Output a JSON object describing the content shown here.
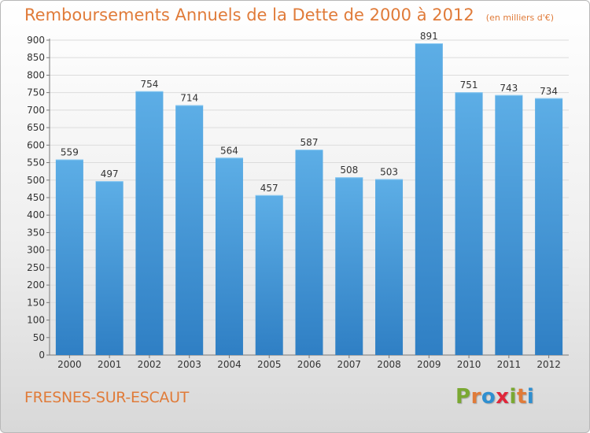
{
  "header": {
    "title": "Remboursements Annuels de la Dette de 2000 à 2012",
    "unit": "(en milliers d'€)"
  },
  "footer": {
    "commune": "FRESNES-SUR-ESCAUT",
    "logo_text": "Proxiti"
  },
  "colors": {
    "title": "#e07b39",
    "bar_top": "#5daee6",
    "bar_bottom": "#2f7fc4",
    "logo": [
      "#7aa832",
      "#e07b39",
      "#2f8fd0",
      "#e0263a",
      "#7aa832",
      "#e07b39",
      "#2f8fd0"
    ]
  },
  "chart_data": {
    "type": "bar",
    "title": "Remboursements Annuels de la Dette de 2000 à 2012",
    "subtitle": "(en milliers d'€)",
    "categories": [
      "2000",
      "2001",
      "2002",
      "2003",
      "2004",
      "2005",
      "2006",
      "2007",
      "2008",
      "2009",
      "2010",
      "2011",
      "2012"
    ],
    "values": [
      559,
      497,
      754,
      714,
      564,
      457,
      587,
      508,
      503,
      891,
      751,
      743,
      734
    ],
    "data_labels": [
      "559",
      "497",
      "754",
      "714",
      "564",
      "457",
      "587",
      "508",
      "503",
      "891",
      "751",
      "743",
      "734"
    ],
    "yticks": [
      0,
      50,
      100,
      150,
      200,
      250,
      300,
      350,
      400,
      450,
      500,
      550,
      600,
      650,
      700,
      750,
      800,
      850,
      900
    ],
    "ylim": [
      0,
      900
    ],
    "grid": true,
    "legend": "none"
  }
}
